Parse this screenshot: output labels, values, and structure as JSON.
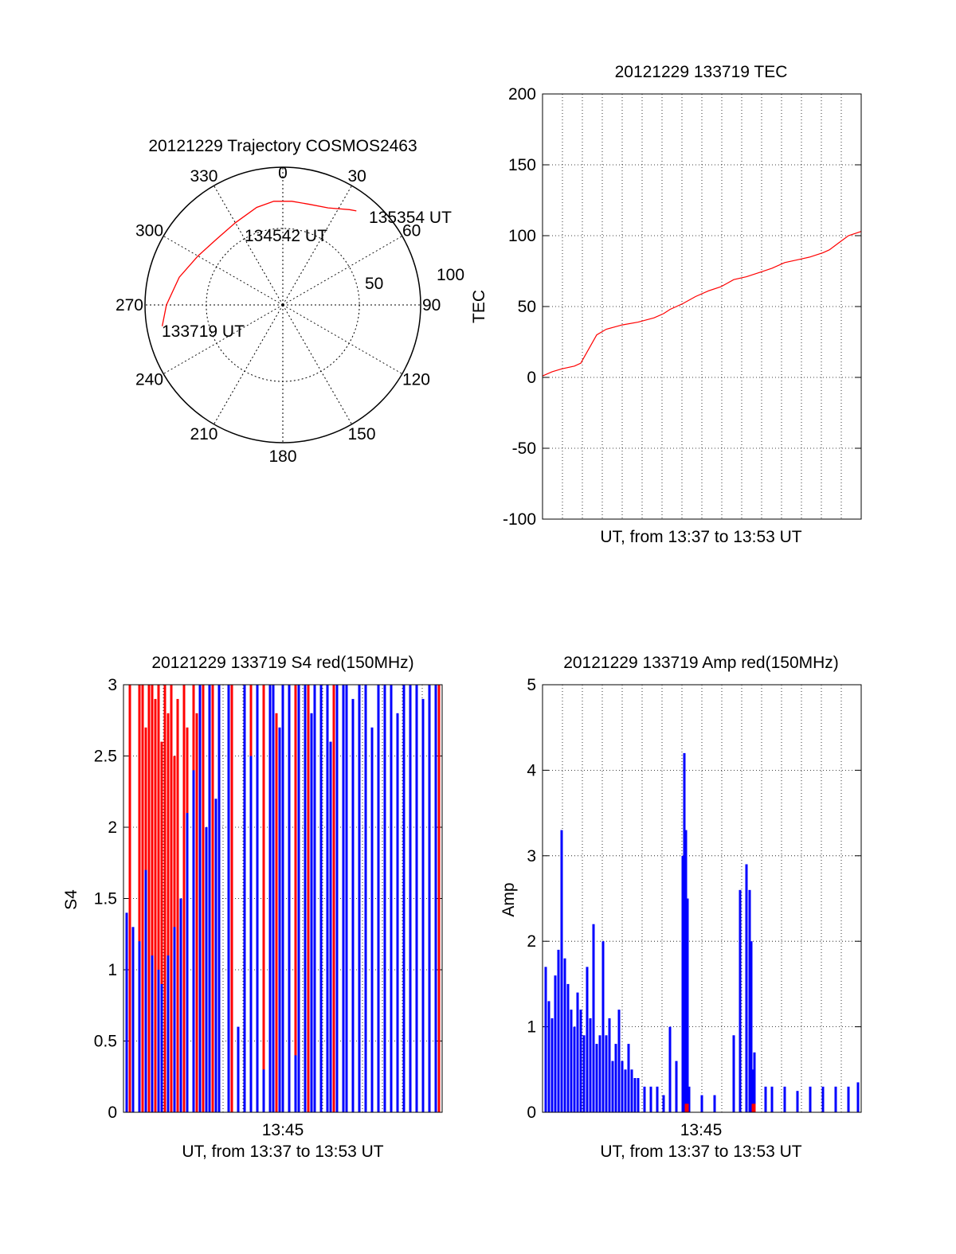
{
  "chart_data": [
    {
      "type": "polar",
      "title": "20121229 Trajectory COSMOS2463",
      "azimuth_labels": [
        "0",
        "30",
        "60",
        "90",
        "120",
        "150",
        "180",
        "210",
        "240",
        "270",
        "300",
        "330"
      ],
      "radial_labels": [
        "50",
        "100"
      ],
      "trajectory": {
        "color": "#ff0000",
        "points": [
          {
            "az": 260,
            "zenith": 80
          },
          {
            "az": 270,
            "zenith": 76
          },
          {
            "az": 285,
            "zenith": 70
          },
          {
            "az": 300,
            "zenith": 64
          },
          {
            "az": 315,
            "zenith": 61
          },
          {
            "az": 330,
            "zenith": 62
          },
          {
            "az": 345,
            "zenith": 66
          },
          {
            "az": 355,
            "zenith": 68
          },
          {
            "az": 5,
            "zenith": 68
          },
          {
            "az": 15,
            "zenith": 68
          },
          {
            "az": 25,
            "zenith": 70
          },
          {
            "az": 35,
            "zenith": 76
          },
          {
            "az": 38,
            "zenith": 78
          }
        ]
      },
      "annotations": [
        "133719 UT",
        "134542 UT",
        "135354 UT"
      ],
      "colors": {
        "grid": "#000000",
        "trajectory": "#ff0000"
      }
    },
    {
      "type": "line",
      "title": "20121229 133719 TEC",
      "xlabel": "UT, from 13:37 to 13:53 UT",
      "ylabel": "TEC",
      "ylim": [
        -100,
        200
      ],
      "yticks": [
        "-100",
        "-50",
        "0",
        "50",
        "100",
        "150",
        "200"
      ],
      "grid": true,
      "series": [
        {
          "color": "#ff0000",
          "x_frac": [
            0.0,
            0.03,
            0.06,
            0.1,
            0.12,
            0.15,
            0.17,
            0.2,
            0.25,
            0.3,
            0.35,
            0.38,
            0.4,
            0.44,
            0.48,
            0.52,
            0.56,
            0.6,
            0.64,
            0.68,
            0.72,
            0.76,
            0.8,
            0.84,
            0.88,
            0.9,
            0.93,
            0.96,
            1.0
          ],
          "values": [
            1,
            4,
            6,
            8,
            10,
            22,
            30,
            34,
            37,
            39,
            42,
            45,
            48,
            52,
            57,
            61,
            64,
            69,
            71,
            74,
            77,
            81,
            83,
            85,
            88,
            90,
            95,
            100,
            103
          ]
        }
      ]
    },
    {
      "type": "bar",
      "title": "20121229 133719 S4 red(150MHz)",
      "xlabel": "UT, from 13:37 to 13:53 UT",
      "ylabel": "S4",
      "ylim": [
        0,
        3
      ],
      "yticks": [
        "0",
        "0.5",
        "1",
        "1.5",
        "2",
        "2.5",
        "3"
      ],
      "xticks": [
        "13:45"
      ],
      "grid": true,
      "series": [
        {
          "name": "",
          "color": "#ff0000",
          "x_frac": [
            0.02,
            0.05,
            0.06,
            0.07,
            0.08,
            0.09,
            0.1,
            0.11,
            0.12,
            0.13,
            0.14,
            0.15,
            0.16,
            0.17,
            0.19,
            0.2,
            0.22,
            0.23,
            0.25,
            0.28,
            0.3,
            0.34,
            0.38,
            0.4,
            0.42,
            0.44,
            0.46,
            0.48,
            0.5,
            0.54,
            0.58,
            0.6,
            0.66,
            0.7,
            0.74,
            0.8,
            0.84,
            0.88,
            0.92,
            0.96,
            0.99
          ],
          "values": [
            3,
            3,
            3,
            2.7,
            3,
            3,
            2.9,
            3,
            2.6,
            3,
            2.8,
            3,
            2.5,
            2.9,
            3,
            2.7,
            3,
            2.8,
            3,
            3,
            2.6,
            3,
            3,
            3,
            3,
            3,
            3,
            2.8,
            3,
            3,
            3,
            3,
            3,
            3,
            3,
            3,
            3,
            3,
            3,
            3,
            3
          ]
        },
        {
          "name": "",
          "color": "#0000ff",
          "x_frac": [
            0.01,
            0.03,
            0.05,
            0.07,
            0.09,
            0.11,
            0.12,
            0.14,
            0.16,
            0.18,
            0.2,
            0.22,
            0.24,
            0.26,
            0.27,
            0.29,
            0.3,
            0.33,
            0.36,
            0.38,
            0.4,
            0.42,
            0.44,
            0.46,
            0.47,
            0.49,
            0.5,
            0.52,
            0.54,
            0.55,
            0.57,
            0.59,
            0.6,
            0.62,
            0.64,
            0.65,
            0.67,
            0.69,
            0.7,
            0.72,
            0.74,
            0.76,
            0.78,
            0.8,
            0.82,
            0.84,
            0.86,
            0.88,
            0.9,
            0.92,
            0.94,
            0.96,
            0.98
          ],
          "values": [
            1.4,
            1.3,
            1.2,
            1.7,
            1.1,
            1.0,
            0.9,
            1.1,
            1.3,
            1.5,
            2.1,
            2.4,
            3,
            2.0,
            3,
            2.2,
            3,
            3,
            0.6,
            3,
            2.5,
            3,
            0.3,
            3,
            3,
            2.7,
            3,
            3,
            0.4,
            3,
            3,
            2.8,
            3,
            3,
            3,
            2.6,
            3,
            3,
            3,
            2.9,
            3,
            3,
            2.7,
            3,
            3,
            3,
            2.8,
            3,
            3,
            3,
            2.9,
            3,
            3
          ]
        }
      ]
    },
    {
      "type": "bar",
      "title": "20121229 133719 Amp red(150MHz)",
      "xlabel": "UT, from 13:37 to 13:53 UT",
      "ylabel": "Amp",
      "ylim": [
        0,
        5
      ],
      "yticks": [
        "0",
        "1",
        "2",
        "3",
        "4",
        "5"
      ],
      "xticks": [
        "13:45"
      ],
      "grid": true,
      "series": [
        {
          "name": "",
          "color": "#0000ff",
          "x_frac": [
            0.01,
            0.02,
            0.03,
            0.04,
            0.05,
            0.06,
            0.07,
            0.08,
            0.09,
            0.1,
            0.11,
            0.12,
            0.13,
            0.14,
            0.15,
            0.16,
            0.17,
            0.18,
            0.19,
            0.2,
            0.21,
            0.22,
            0.23,
            0.24,
            0.25,
            0.26,
            0.27,
            0.28,
            0.29,
            0.3,
            0.32,
            0.34,
            0.36,
            0.38,
            0.4,
            0.42,
            0.44,
            0.445,
            0.45,
            0.455,
            0.46,
            0.5,
            0.54,
            0.6,
            0.62,
            0.64,
            0.65,
            0.655,
            0.66,
            0.665,
            0.7,
            0.72,
            0.76,
            0.8,
            0.84,
            0.88,
            0.92,
            0.96,
            0.99
          ],
          "values": [
            1.7,
            1.3,
            1.1,
            1.6,
            1.9,
            3.3,
            1.8,
            1.5,
            1.2,
            1.0,
            1.4,
            1.2,
            0.9,
            1.7,
            1.1,
            2.2,
            0.8,
            0.9,
            2.0,
            0.9,
            1.1,
            0.6,
            0.8,
            1.2,
            0.6,
            0.5,
            0.8,
            0.5,
            0.4,
            0.4,
            0.3,
            0.3,
            0.3,
            0.2,
            1.0,
            0.6,
            3.0,
            4.2,
            3.3,
            2.5,
            0.3,
            0.2,
            0.2,
            0.9,
            2.6,
            2.9,
            2.6,
            2.0,
            0.5,
            0.7,
            0.3,
            0.3,
            0.3,
            0.25,
            0.3,
            0.3,
            0.3,
            0.3,
            0.35
          ]
        },
        {
          "name": "",
          "color": "#ff0000",
          "x_frac": [
            0.45,
            0.455,
            0.66,
            0.665
          ],
          "values": [
            0.1,
            0.1,
            0.1,
            0.1
          ]
        }
      ]
    }
  ]
}
